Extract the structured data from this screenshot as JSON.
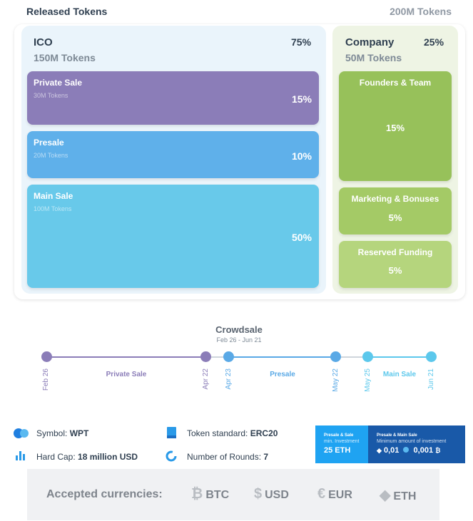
{
  "header": {
    "title": "Released Tokens",
    "total": "200M Tokens"
  },
  "ico": {
    "title": "ICO",
    "percent": "75%",
    "tokens": "150M Tokens",
    "blocks": [
      {
        "name": "Private Sale",
        "tokens": "30M Tokens",
        "percent": "15%",
        "color": "#8b7db8"
      },
      {
        "name": "Presale",
        "tokens": "20M Tokens",
        "percent": "10%",
        "color": "#5fb0ea"
      },
      {
        "name": "Main Sale",
        "tokens": "100M Tokens",
        "percent": "50%",
        "color": "#68c9ea"
      }
    ]
  },
  "company": {
    "title": "Company",
    "percent": "25%",
    "tokens": "50M Tokens",
    "blocks": [
      {
        "name": "Founders & Team",
        "percent": "15%",
        "color": "#97c15a"
      },
      {
        "name": "Marketing & Bonuses",
        "percent": "5%",
        "color": "#a4ca66"
      },
      {
        "name": "Reserved Funding",
        "percent": "5%",
        "color": "#b5d57d"
      }
    ]
  },
  "crowdsale": {
    "title": "Crowdsale",
    "dates": "Feb 26 - Jun 21",
    "points": [
      "Feb 26",
      "Apr 22",
      "Apr 23",
      "May 22",
      "May 25",
      "Jun 21"
    ],
    "segments": [
      "Private Sale",
      "Presale",
      "Main Sale"
    ],
    "colors": {
      "private": "#8b7db8",
      "presale": "#5aa9e6",
      "main": "#5cc8ec"
    }
  },
  "info": {
    "symbol_label": "Symbol:",
    "symbol_value": "WPT",
    "standard_label": "Token standard:",
    "standard_value": "ERC20",
    "hardcap_label": "Hard Cap:",
    "hardcap_value": "18 million USD",
    "rounds_label": "Number of Rounds:",
    "rounds_value": "7"
  },
  "investment": {
    "box1": {
      "line1": "Presale & Sale",
      "line2": "min. Investment",
      "value": "25 ETH"
    },
    "box2": {
      "line1": "Presale & Main Sale",
      "line2": "Minimum amount of investment",
      "eth_value": "0,01",
      "btc_value": "0,001"
    }
  },
  "currencies": {
    "label": "Accepted currencies:",
    "items": [
      {
        "symbol": "₿",
        "name": "BTC",
        "icon": "bitcoin-icon"
      },
      {
        "symbol": "$",
        "name": "USD",
        "icon": "dollar-icon"
      },
      {
        "symbol": "€",
        "name": "EUR",
        "icon": "euro-icon"
      },
      {
        "symbol": "⬨",
        "name": "ETH",
        "icon": "ethereum-icon"
      }
    ]
  }
}
